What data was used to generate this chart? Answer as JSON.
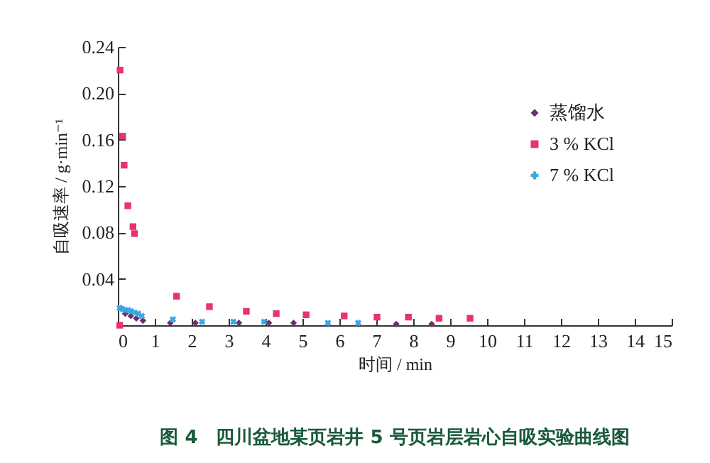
{
  "chart_data": {
    "type": "scatter",
    "title": "图 4　四川盆地某页岩井 5 号页岩层岩心自吸实验曲线图",
    "xlabel": "时间 / min",
    "ylabel": "自吸速率 / g·min⁻¹",
    "xlim": [
      0,
      15
    ],
    "xticks": [
      0,
      1,
      2,
      3,
      4,
      5,
      6,
      7,
      8,
      9,
      10,
      11,
      12,
      13,
      14,
      15
    ],
    "ylim": [
      0,
      0.24
    ],
    "yticks": [
      {
        "value": 0,
        "label": null
      },
      0.04,
      0.08,
      0.12,
      0.16,
      {
        "value": 0.2,
        "label": "0.20"
      },
      0.24
    ],
    "grid": false,
    "legend": "top right",
    "series": [
      {
        "name": "蒸馏水",
        "color": "#6b2f6b",
        "marker": "diamond",
        "x": [
          0.2,
          0.35,
          0.5,
          0.68,
          1.42,
          2.1,
          3.28,
          4.09,
          4.76,
          7.54,
          8.5
        ],
        "values": [
          0.01,
          0.008,
          0.006,
          0.004,
          0.002,
          0.002,
          0.002,
          0.002,
          0.002,
          0.001,
          0.001
        ]
      },
      {
        "name": "3 % KCl",
        "color": "#e8336b",
        "marker": "square",
        "x": [
          0.05,
          0.06,
          0.13,
          0.17,
          0.27,
          0.41,
          0.45,
          1.59,
          2.48,
          3.48,
          4.29,
          5.1,
          6.13,
          7.02,
          7.87,
          8.7,
          9.54
        ],
        "values": [
          0.0,
          0.22,
          0.163,
          0.138,
          0.103,
          0.085,
          0.079,
          0.025,
          0.016,
          0.012,
          0.01,
          0.009,
          0.008,
          0.007,
          0.007,
          0.006,
          0.006
        ]
      },
      {
        "name": "7 % KCl",
        "color": "#3aa7e0",
        "marker": "cross",
        "x": [
          0.05,
          0.12,
          0.2,
          0.28,
          0.36,
          0.45,
          0.55,
          0.65,
          1.49,
          2.28,
          3.13,
          3.96,
          5.69,
          6.51
        ],
        "values": [
          0.015,
          0.014,
          0.013,
          0.013,
          0.012,
          0.011,
          0.01,
          0.008,
          0.005,
          0.003,
          0.003,
          0.003,
          0.002,
          0.002
        ]
      }
    ]
  }
}
